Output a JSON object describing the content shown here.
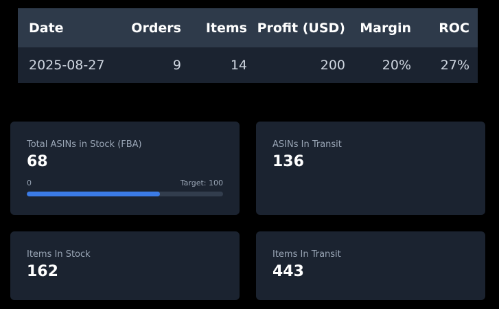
{
  "table": {
    "headers": [
      "Date",
      "Orders",
      "Items",
      "Profit (USD)",
      "Margin",
      "ROC"
    ],
    "row": [
      "2025-08-27",
      "9",
      "14",
      "200",
      "20%",
      "27%"
    ]
  },
  "cards": {
    "asins_fba": {
      "label": "Total ASINs in Stock (FBA)",
      "value": "68",
      "progress": {
        "min_label": "0",
        "target_label": "Target: 100",
        "fraction": 0.68,
        "fill_color": "#3b7be6"
      }
    },
    "asins_transit": {
      "label": "ASINs In Transit",
      "value": "136"
    },
    "items_stock": {
      "label": "Items In Stock",
      "value": "162"
    },
    "items_transit": {
      "label": "Items In Transit",
      "value": "443"
    }
  }
}
